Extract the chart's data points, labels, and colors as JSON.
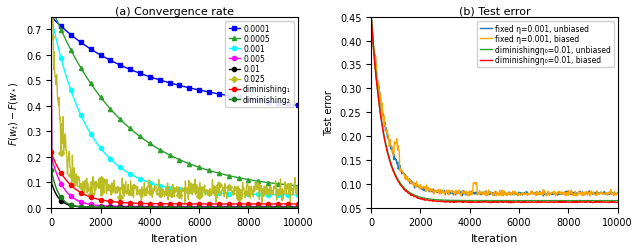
{
  "left_title": "(a) Convergence rate",
  "right_title": "(b) Test error",
  "left_ylabel": "$F(w_t) - F(w_*)$",
  "right_ylabel": "Test error",
  "xlabel": "Iteration",
  "xlim": [
    0,
    10000
  ],
  "left_ylim": [
    0,
    0.75
  ],
  "right_ylim": [
    0.05,
    0.45
  ],
  "left_legend": [
    "0.0001",
    "0.0005",
    "0.001",
    "0.005",
    "0.01",
    "0.025",
    "diminishing₁",
    "diminishing₂"
  ],
  "right_legend": [
    "fixed η=0.001, unbiased",
    "fixed η=0.001, biased",
    "diminishingη₀=0.01, unbiased",
    "diminishingη₀=0.01, biased"
  ],
  "left_colors": [
    "blue",
    "#2ca02c",
    "cyan",
    "magenta",
    "black",
    "#bcbd22",
    "red",
    "#1a7a1a"
  ],
  "right_colors": [
    "#1f77b4",
    "orange",
    "#2ca02c",
    "red"
  ],
  "marker_interval": 20,
  "n_points": 501
}
